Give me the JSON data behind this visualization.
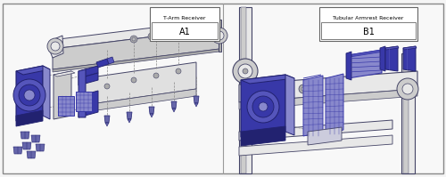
{
  "background_color": "#f5f5f5",
  "border_color": "#888888",
  "panel_bg": "#f8f8f8",
  "left_panel": {
    "label_title": "T-Arm Receiver",
    "label_code": "A1"
  },
  "right_panel": {
    "label_title": "Tubular Armrest Receiver",
    "label_code": "B1"
  },
  "part_color": "#3838a8",
  "part_color2": "#5555bb",
  "part_light": "#8888cc",
  "part_dark": "#222270",
  "gray_light": "#e8e8e8",
  "gray_med": "#cccccc",
  "gray_dark": "#aaaaaa",
  "outline": "#444466",
  "screw_color": "#6666aa",
  "line_color": "#888888"
}
